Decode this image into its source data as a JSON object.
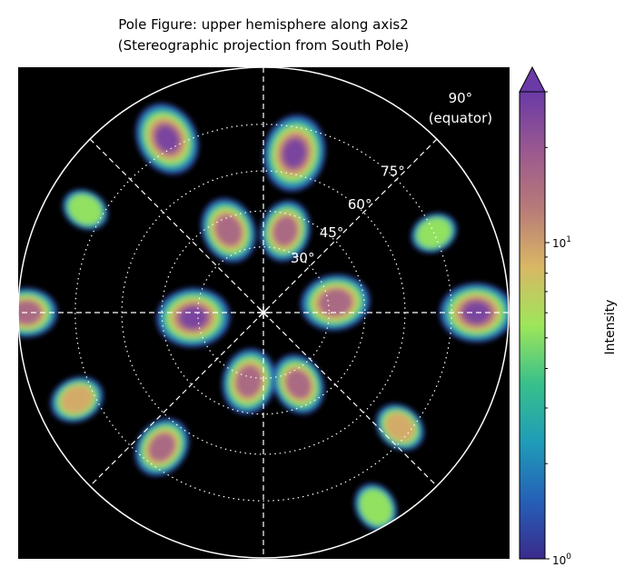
{
  "chart_data": {
    "type": "heatmap",
    "projection": "stereographic pole figure",
    "title_line1": "Pole Figure: upper hemisphere along axis2",
    "title_line2": "(Stereographic projection from South Pole)",
    "background": "#000000",
    "colormap": "turbo",
    "colorbar": {
      "label": "Intensity",
      "scale": "log",
      "vmin": 1,
      "vmax": 30,
      "extend": "max",
      "ticks": [
        {
          "value": 1,
          "base": "10",
          "exp": "0"
        },
        {
          "value": 10,
          "base": "10",
          "exp": "1"
        }
      ]
    },
    "polar_circles_deg": [
      30,
      45,
      60,
      75,
      90
    ],
    "polar_circle_labels": [
      "30°",
      "45°",
      "60°",
      "75°",
      "90°"
    ],
    "equator_label": "(equator)",
    "radial_lines_deg": [
      0,
      45,
      90,
      135
    ],
    "hotspots": [
      {
        "az": 119,
        "polar": 78,
        "intensity": 22
      },
      {
        "az": 79,
        "polar": 67,
        "intensity": 25
      },
      {
        "az": 0,
        "polar": 82,
        "intensity": 22
      },
      {
        "az": 180,
        "polar": 88,
        "intensity": 12
      },
      {
        "az": 113,
        "polar": 40,
        "intensity": 15
      },
      {
        "az": 75,
        "polar": 38,
        "intensity": 12
      },
      {
        "az": 8,
        "polar": 33,
        "intensity": 18
      },
      {
        "az": 184,
        "polar": 32,
        "intensity": 22
      },
      {
        "az": 258,
        "polar": 32,
        "intensity": 15
      },
      {
        "az": 296,
        "polar": 36,
        "intensity": 12
      },
      {
        "az": 233,
        "polar": 69,
        "intensity": 12
      },
      {
        "az": 205,
        "polar": 80,
        "intensity": 8
      },
      {
        "az": 320,
        "polar": 72,
        "intensity": 7
      },
      {
        "az": 300,
        "polar": 85,
        "intensity": 6
      },
      {
        "az": 25,
        "polar": 75,
        "intensity": 5
      },
      {
        "az": 150,
        "polar": 80,
        "intensity": 5
      }
    ]
  }
}
